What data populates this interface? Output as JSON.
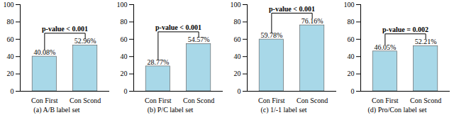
{
  "chart_data": [
    {
      "type": "bar",
      "title": "(a) A/B label set",
      "categories": [
        "Con First",
        "Con Scond"
      ],
      "values": [
        40.08,
        52.96
      ],
      "value_labels": [
        "40.08%",
        "52.96%"
      ],
      "data_labels": true,
      "color": "#a8d8e8",
      "ylim": [
        0,
        100
      ],
      "yticks": [
        0,
        20,
        40,
        60,
        80,
        100
      ],
      "annotations": [
        "p-value < 0.001"
      ]
    },
    {
      "type": "bar",
      "title": "(b) P/C label set",
      "categories": [
        "Con First",
        "Con Scond"
      ],
      "values": [
        28.77,
        54.57
      ],
      "value_labels": [
        "28.77%",
        "54.57%"
      ],
      "data_labels": true,
      "color": "#a8d8e8",
      "ylim": [
        0,
        100
      ],
      "yticks": [
        0,
        20,
        40,
        60,
        80,
        100
      ],
      "annotations": [
        "p-value < 0.001"
      ]
    },
    {
      "type": "bar",
      "title": "(c) 1/-1 label set",
      "categories": [
        "Con First",
        "Con Scond"
      ],
      "values": [
        59.78,
        76.16
      ],
      "value_labels": [
        "59.78%",
        "76.16%"
      ],
      "data_labels": true,
      "color": "#a8d8e8",
      "ylim": [
        0,
        100
      ],
      "yticks": [
        0,
        20,
        40,
        60,
        80,
        100
      ],
      "annotations": [
        "p-value < 0.001"
      ]
    },
    {
      "type": "bar",
      "title": "(d) Pro/Con label set",
      "categories": [
        "Con First",
        "Con Scond"
      ],
      "values": [
        46.05,
        52.21
      ],
      "value_labels": [
        "46.05%",
        "52.21%"
      ],
      "data_labels": true,
      "color": "#a8d8e8",
      "ylim": [
        0,
        100
      ],
      "yticks": [
        0,
        20,
        40,
        60,
        80,
        100
      ],
      "annotations": [
        "p-value = 0.002"
      ]
    }
  ]
}
